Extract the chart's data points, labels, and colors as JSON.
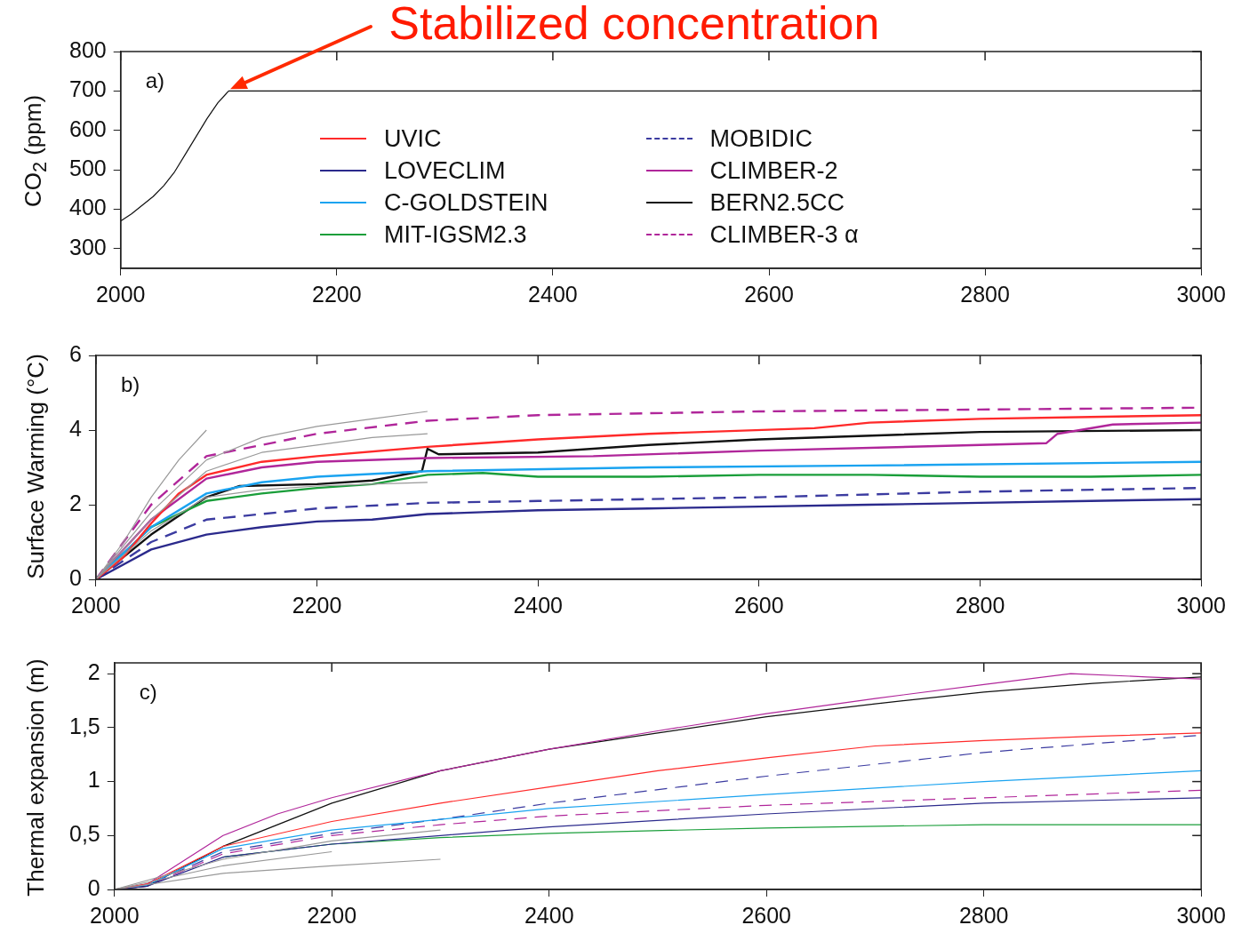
{
  "chart_data": [
    {
      "type": "line",
      "ylabel": "CO$_{2}$ (ppm)",
      "xlim": [
        2000,
        3000
      ],
      "xticks": [
        2000,
        2200,
        2400,
        2600,
        2800,
        3000
      ],
      "ylim": [
        250,
        800
      ],
      "yticks": [
        300,
        400,
        500,
        600,
        700,
        800
      ],
      "grid": false,
      "marker": "none",
      "annotations": [
        "a)",
        "Stabilized concentration"
      ],
      "series": [
        {
          "color": "#111111",
          "x": [
            2000,
            2010,
            2020,
            2030,
            2040,
            2050,
            2060,
            2070,
            2080,
            2090,
            2100,
            3000
          ],
          "values": [
            370,
            388,
            410,
            432,
            460,
            495,
            540,
            585,
            630,
            670,
            700,
            700
          ]
        }
      ]
    },
    {
      "type": "line",
      "ylabel": "Surface Warming (°C)",
      "xlim": [
        2000,
        3000
      ],
      "xticks": [
        2000,
        2200,
        2400,
        2600,
        2800,
        3000
      ],
      "ylim": [
        0,
        6
      ],
      "yticks": [
        0,
        2,
        4,
        6
      ],
      "grid": false,
      "marker": "none",
      "legend": "top",
      "annotations": [
        "b)"
      ],
      "series": [
        {
          "color": "#999999",
          "x": [
            2000,
            2025,
            2050,
            2075,
            2100
          ],
          "values": [
            0,
            1.0,
            2.2,
            3.2,
            4.0
          ]
        },
        {
          "color": "#999999",
          "x": [
            2000,
            2050,
            2100,
            2150,
            2200,
            2250,
            2300
          ],
          "values": [
            0,
            1.8,
            3.2,
            3.8,
            4.1,
            4.3,
            4.5
          ]
        },
        {
          "color": "#999999",
          "x": [
            2000,
            2050,
            2100,
            2150,
            2200,
            2250,
            2300
          ],
          "values": [
            0,
            1.6,
            2.9,
            3.4,
            3.6,
            3.8,
            3.9
          ]
        },
        {
          "color": "#999999",
          "x": [
            2000,
            2050,
            2100,
            2150,
            2200,
            2250,
            2300
          ],
          "values": [
            0,
            1.3,
            2.2,
            2.4,
            2.5,
            2.55,
            2.6
          ]
        },
        {
          "name": "UVIC",
          "color": "#ff2a2a",
          "x": [
            2000,
            2025,
            2050,
            2075,
            2100,
            2150,
            2200,
            2300,
            2400,
            2500,
            2650,
            2700,
            2800,
            2900,
            3000
          ],
          "values": [
            0,
            0.6,
            1.5,
            2.3,
            2.8,
            3.15,
            3.3,
            3.55,
            3.75,
            3.9,
            4.05,
            4.2,
            4.3,
            4.35,
            4.4
          ]
        },
        {
          "name": "LOVECLIM",
          "color": "#2b2a8c",
          "x": [
            2000,
            2025,
            2050,
            2100,
            2150,
            2200,
            2250,
            2300,
            2350,
            2400,
            2500,
            2600,
            2700,
            2800,
            2900,
            3000
          ],
          "values": [
            0,
            0.4,
            0.8,
            1.2,
            1.4,
            1.55,
            1.6,
            1.75,
            1.8,
            1.85,
            1.9,
            1.95,
            2.0,
            2.05,
            2.1,
            2.15
          ]
        },
        {
          "name": "C-GOLDSTEIN",
          "color": "#1aa3f0",
          "x": [
            2000,
            2050,
            2100,
            2150,
            2200,
            2300,
            2500,
            2700,
            3000
          ],
          "values": [
            0,
            1.4,
            2.3,
            2.6,
            2.75,
            2.9,
            3.0,
            3.05,
            3.15
          ]
        },
        {
          "name": "MIT-IGSM2.3",
          "color": "#1a9e3a",
          "x": [
            2000,
            2050,
            2100,
            2150,
            2200,
            2250,
            2300,
            2350,
            2400,
            2500,
            2600,
            2700,
            2800,
            2900,
            3000
          ],
          "values": [
            0,
            1.4,
            2.1,
            2.3,
            2.45,
            2.55,
            2.8,
            2.85,
            2.75,
            2.75,
            2.8,
            2.8,
            2.75,
            2.75,
            2.8
          ]
        },
        {
          "name": "MOBIDIC",
          "color": "#3b3ba0",
          "line_style": "dashed",
          "x": [
            2000,
            2050,
            2100,
            2200,
            2300,
            2400,
            2600,
            2800,
            3000
          ],
          "values": [
            0,
            1.0,
            1.6,
            1.9,
            2.05,
            2.1,
            2.2,
            2.35,
            2.45
          ]
        },
        {
          "name": "CLIMBER-2",
          "color": "#b0269a",
          "x": [
            2000,
            2050,
            2100,
            2150,
            2200,
            2300,
            2450,
            2600,
            2800,
            2860,
            2870,
            2920,
            3000
          ],
          "values": [
            0,
            1.6,
            2.7,
            3.0,
            3.15,
            3.25,
            3.3,
            3.45,
            3.6,
            3.65,
            3.9,
            4.15,
            4.2
          ]
        },
        {
          "name": "BERN2.5CC",
          "color": "#111111",
          "x": [
            2000,
            2050,
            2100,
            2130,
            2200,
            2250,
            2295,
            2300,
            2310,
            2400,
            2500,
            2600,
            2800,
            3000
          ],
          "values": [
            0,
            1.2,
            2.2,
            2.5,
            2.55,
            2.65,
            2.9,
            3.5,
            3.35,
            3.4,
            3.6,
            3.75,
            3.95,
            4.0
          ]
        },
        {
          "name": "CLIMBER-3 α",
          "color": "#b0269a",
          "line_style": "dashed",
          "x": [
            2000,
            2050,
            2100,
            2150,
            2200,
            2300,
            2400,
            2600,
            2800,
            3000
          ],
          "values": [
            0,
            2.0,
            3.3,
            3.6,
            3.9,
            4.25,
            4.4,
            4.5,
            4.55,
            4.6
          ]
        }
      ]
    },
    {
      "type": "line",
      "ylabel": "Thermal expansion (m)",
      "xlim": [
        2000,
        3000
      ],
      "xticks": [
        2000,
        2200,
        2400,
        2600,
        2800,
        3000
      ],
      "ylim": [
        0,
        2.1
      ],
      "yticks": [
        0,
        {
          "value": 0.5,
          "label": "0,5"
        },
        1,
        {
          "value": 1.5,
          "label": "1,5"
        },
        2
      ],
      "grid": false,
      "marker": "none",
      "annotations": [
        "c)"
      ],
      "series": [
        {
          "color": "#999999",
          "x": [
            2000,
            2100,
            2200,
            2300
          ],
          "values": [
            0,
            0.15,
            0.22,
            0.28
          ]
        },
        {
          "color": "#999999",
          "x": [
            2000,
            2100,
            2200,
            2300
          ],
          "values": [
            0,
            0.28,
            0.45,
            0.55
          ]
        },
        {
          "color": "#999999",
          "x": [
            2000,
            2100,
            2200
          ],
          "values": [
            0,
            0.22,
            0.35
          ]
        },
        {
          "color": "#ff2a2a",
          "x": [
            2000,
            2030,
            2100,
            2200,
            2300,
            2400,
            2500,
            2600,
            2700,
            2800,
            2900,
            3000
          ],
          "values": [
            0,
            0.05,
            0.4,
            0.63,
            0.8,
            0.95,
            1.1,
            1.22,
            1.33,
            1.38,
            1.42,
            1.45
          ]
        },
        {
          "color": "#2b2a8c",
          "x": [
            2000,
            2030,
            2100,
            2200,
            2300,
            2400,
            2600,
            2800,
            3000
          ],
          "values": [
            0,
            0.03,
            0.3,
            0.42,
            0.5,
            0.58,
            0.7,
            0.8,
            0.85
          ]
        },
        {
          "color": "#1aa3f0",
          "x": [
            2000,
            2030,
            2100,
            2200,
            2300,
            2400,
            2600,
            2800,
            3000
          ],
          "values": [
            0,
            0.04,
            0.38,
            0.55,
            0.65,
            0.75,
            0.88,
            1.0,
            1.1
          ]
        },
        {
          "color": "#1a9e3a",
          "x": [
            2100,
            2200,
            2300,
            2400,
            2600,
            2800,
            3000
          ],
          "values": [
            0.3,
            0.42,
            0.48,
            0.52,
            0.57,
            0.6,
            0.6
          ]
        },
        {
          "color": "#3b3ba0",
          "line_style": "dashed",
          "x": [
            2000,
            2030,
            2100,
            2200,
            2300,
            2400,
            2600,
            2800,
            3000
          ],
          "values": [
            0,
            0.04,
            0.35,
            0.52,
            0.65,
            0.8,
            1.05,
            1.27,
            1.43
          ]
        },
        {
          "color": "#b0269a",
          "x": [
            2000,
            2030,
            2100,
            2150,
            2200,
            2300,
            2400,
            2500,
            2600,
            2700,
            2800,
            2880,
            2950,
            3000
          ],
          "values": [
            0,
            0.05,
            0.5,
            0.7,
            0.85,
            1.1,
            1.3,
            1.47,
            1.63,
            1.77,
            1.9,
            2.0,
            1.97,
            1.95
          ]
        },
        {
          "color": "#111111",
          "x": [
            2000,
            2030,
            2100,
            2200,
            2300,
            2400,
            2500,
            2600,
            2700,
            2800,
            2900,
            3000
          ],
          "values": [
            0,
            0.03,
            0.4,
            0.8,
            1.1,
            1.3,
            1.45,
            1.6,
            1.72,
            1.83,
            1.91,
            1.97
          ]
        },
        {
          "color": "#b0269a",
          "line_style": "dashed",
          "x": [
            2000,
            2030,
            2100,
            2200,
            2300,
            2400,
            2600,
            2800,
            3000
          ],
          "values": [
            0,
            0.03,
            0.33,
            0.5,
            0.6,
            0.68,
            0.78,
            0.85,
            0.92
          ]
        }
      ]
    }
  ]
}
